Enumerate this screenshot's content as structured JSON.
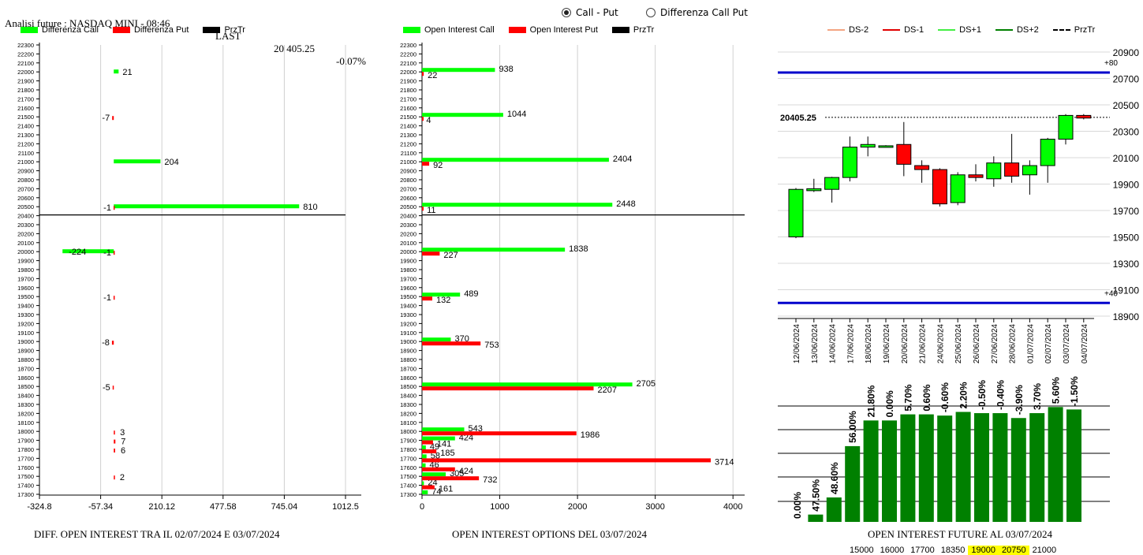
{
  "header": {
    "title": "Analisi future : NASDAQ MINI - 08:46",
    "last_label": "LAST",
    "last_value": "20 405.25",
    "change": "-0.07%"
  },
  "mode": {
    "option1": "Call - Put",
    "option2": "Differenza Call Put",
    "selected": "Call - Put"
  },
  "colors": {
    "green": "#00ff00",
    "red": "#ff0000",
    "dark_green": "#008000",
    "blue": "#0000cc"
  },
  "legend1": {
    "a": "Differenza Call",
    "b": "Differenza Put",
    "c": "PrzTr"
  },
  "legend2": {
    "a": "Open Interest Call",
    "b": "Open Interest Put",
    "c": "PrzTr"
  },
  "legend3": {
    "a": "DS-2",
    "b": "DS-1",
    "c": "DS+1",
    "d": "DS+2",
    "e": "PrzTr"
  },
  "captions": {
    "c1": "DIFF. OPEN INTEREST TRA IL 02/07/2024 E 03/07/2024",
    "c2": "OPEN INTEREST OPTIONS DEL 03/07/2024",
    "c3": "OPEN INTEREST FUTURE AL 03/07/2024"
  },
  "bottom_levels": [
    "15000",
    "16000",
    "17700",
    "18350",
    "19000",
    "20750",
    "21000"
  ],
  "highlighted_levels": [
    "19000",
    "20750"
  ],
  "chart_data": [
    {
      "type": "bar",
      "orientation": "horizontal",
      "title": "DIFF. OPEN INTEREST TRA IL 02/07/2024 E 03/07/2024",
      "strikes": [
        22300,
        22200,
        22100,
        22000,
        21900,
        21800,
        21700,
        21600,
        21500,
        21400,
        21300,
        21200,
        21100,
        21000,
        20900,
        20800,
        20700,
        20600,
        20500,
        20400,
        20300,
        20200,
        20100,
        20000,
        19900,
        19800,
        19700,
        19600,
        19500,
        19400,
        19300,
        19200,
        19100,
        19000,
        18900,
        18800,
        18700,
        18600,
        18500,
        18400,
        18300,
        18200,
        18100,
        18000,
        17900,
        17800,
        17700,
        17600,
        17500,
        17400,
        17300
      ],
      "xticks": [
        "-324.8",
        "-57.34",
        "210.12",
        "477.58",
        "745.04",
        "1012.5"
      ],
      "xlim": [
        -324.8,
        1012.5
      ],
      "price_line": 20400,
      "call_diff": [
        {
          "strike": 22000,
          "value": 21,
          "label": "21"
        },
        {
          "strike": 21000,
          "value": 204,
          "label": "204"
        },
        {
          "strike": 20500,
          "value": 810,
          "label": "810"
        },
        {
          "strike": 20000,
          "value": -224,
          "label": "-224"
        }
      ],
      "put_diff": [
        {
          "strike": 21500,
          "value": -7,
          "label": "-7"
        },
        {
          "strike": 20500,
          "value": -1,
          "label": "-1"
        },
        {
          "strike": 20000,
          "value": -1,
          "label": "-1"
        },
        {
          "strike": 19500,
          "value": -1,
          "label": "-1"
        },
        {
          "strike": 19000,
          "value": -8,
          "label": "-8"
        },
        {
          "strike": 18500,
          "value": -5,
          "label": "-5"
        },
        {
          "strike": 18000,
          "value": 3,
          "label": "3"
        },
        {
          "strike": 17900,
          "value": 7,
          "label": "7"
        },
        {
          "strike": 17800,
          "value": 6,
          "label": "6"
        },
        {
          "strike": 17500,
          "value": 2,
          "label": "2"
        }
      ]
    },
    {
      "type": "bar",
      "orientation": "horizontal",
      "title": "OPEN INTEREST OPTIONS DEL 03/07/2024",
      "xticks": [
        "0",
        "1000",
        "2000",
        "3000",
        "4000"
      ],
      "xlim": [
        0,
        4150
      ],
      "price_line": 20400,
      "call_oi": [
        {
          "strike": 22000,
          "value": 938
        },
        {
          "strike": 21500,
          "value": 1044
        },
        {
          "strike": 21000,
          "value": 2404
        },
        {
          "strike": 20500,
          "value": 2448
        },
        {
          "strike": 20000,
          "value": 1838
        },
        {
          "strike": 19500,
          "value": 489
        },
        {
          "strike": 19000,
          "value": 370
        },
        {
          "strike": 18500,
          "value": 2705
        },
        {
          "strike": 18000,
          "value": 543
        },
        {
          "strike": 17900,
          "value": 424
        },
        {
          "strike": 17800,
          "value": 49
        },
        {
          "strike": 17700,
          "value": 58
        },
        {
          "strike": 17600,
          "value": 46
        },
        {
          "strike": 17500,
          "value": 305
        },
        {
          "strike": 17400,
          "value": 24
        },
        {
          "strike": 17300,
          "value": 74
        }
      ],
      "put_oi": [
        {
          "strike": 22000,
          "value": 22
        },
        {
          "strike": 21500,
          "value": 4
        },
        {
          "strike": 21000,
          "value": 92
        },
        {
          "strike": 20500,
          "value": 11
        },
        {
          "strike": 20000,
          "value": 227
        },
        {
          "strike": 19500,
          "value": 132
        },
        {
          "strike": 19000,
          "value": 753
        },
        {
          "strike": 18500,
          "value": 2207
        },
        {
          "strike": 18000,
          "value": 1986
        },
        {
          "strike": 17900,
          "value": 141
        },
        {
          "strike": 17800,
          "value": 185
        },
        {
          "strike": 17700,
          "value": 3714
        },
        {
          "strike": 17600,
          "value": 424
        },
        {
          "strike": 17500,
          "value": 732
        },
        {
          "strike": 17400,
          "value": 161
        }
      ]
    },
    {
      "type": "candlestick",
      "yticks": [
        "20900",
        "20700",
        "20500",
        "20300",
        "20100",
        "19900",
        "19700",
        "19500",
        "19300",
        "19100",
        "18900"
      ],
      "ylim": [
        18900,
        20900
      ],
      "last_price": 20405.25,
      "last_label": "20405.25",
      "upper_band": {
        "value": 20745,
        "label": "+80"
      },
      "lower_band": {
        "value": 19000,
        "label": "+40"
      },
      "dates": [
        "12/06/2024",
        "13/06/2024",
        "14/06/2024",
        "17/06/2024",
        "18/06/2024",
        "19/06/2024",
        "20/06/2024",
        "21/06/2024",
        "24/06/2024",
        "25/06/2024",
        "26/06/2024",
        "27/06/2024",
        "28/06/2024",
        "01/07/2024",
        "02/07/2024",
        "03/07/2024",
        "04/07/2024"
      ],
      "candles": [
        {
          "o": 19500,
          "c": 19860,
          "h": 19870,
          "l": 19490
        },
        {
          "o": 19850,
          "c": 19865,
          "h": 19940,
          "l": 19840
        },
        {
          "o": 19860,
          "c": 19950,
          "h": 19955,
          "l": 19760
        },
        {
          "o": 19950,
          "c": 20180,
          "h": 20260,
          "l": 19920
        },
        {
          "o": 20180,
          "c": 20200,
          "h": 20260,
          "l": 20110
        },
        {
          "o": 20190,
          "c": 20190,
          "h": 20195,
          "l": 20185
        },
        {
          "o": 20200,
          "c": 20050,
          "h": 20370,
          "l": 19960
        },
        {
          "o": 20040,
          "c": 20010,
          "h": 20080,
          "l": 19910
        },
        {
          "o": 20010,
          "c": 19750,
          "h": 20020,
          "l": 19730
        },
        {
          "o": 19760,
          "c": 19970,
          "h": 19990,
          "l": 19740
        },
        {
          "o": 19970,
          "c": 19950,
          "h": 20050,
          "l": 19920
        },
        {
          "o": 19940,
          "c": 20060,
          "h": 20110,
          "l": 19880
        },
        {
          "o": 20060,
          "c": 19960,
          "h": 20280,
          "l": 19910
        },
        {
          "o": 19970,
          "c": 20040,
          "h": 20080,
          "l": 19820
        },
        {
          "o": 20040,
          "c": 20240,
          "h": 20250,
          "l": 19910
        },
        {
          "o": 20240,
          "c": 20420,
          "h": 20430,
          "l": 20200
        },
        {
          "o": 20420,
          "c": 20400,
          "h": 20430,
          "l": 20390
        }
      ]
    },
    {
      "type": "bar",
      "title": "OPEN INTEREST FUTURE AL 03/07/2024",
      "values": [
        0,
        47.5,
        48.6,
        56.0,
        21.8,
        0.0,
        5.7,
        0.6,
        -0.6,
        2.2,
        -0.5,
        -0.4,
        -3.9,
        3.7,
        5.6,
        -1.5
      ],
      "labels": [
        "0.00%",
        "47.50%",
        "48.60%",
        "56.00%",
        "21.80%",
        "0.00%",
        "5.70%",
        "0.60%",
        "-0.60%",
        "2.20%",
        "-0.50%",
        "-0.40%",
        "-3.90%",
        "3.70%",
        "5.60%",
        "-1.50%"
      ],
      "heights_relative": [
        0,
        0.06,
        0.2,
        0.62,
        0.83,
        0.83,
        0.88,
        0.88,
        0.87,
        0.9,
        0.89,
        0.89,
        0.85,
        0.89,
        0.94,
        0.92
      ]
    }
  ]
}
